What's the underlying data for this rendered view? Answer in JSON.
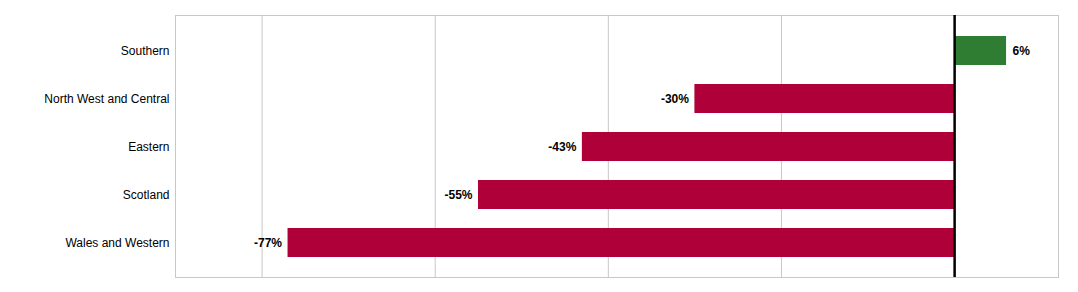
{
  "chart_data": {
    "type": "bar",
    "orientation": "horizontal",
    "categories": [
      "Wales and Western",
      "Scotland",
      "Eastern",
      "North West and Central",
      "Southern"
    ],
    "values": [
      -77,
      -55,
      -43,
      -30,
      6
    ],
    "value_labels": [
      "-77%",
      "-55%",
      "-43%",
      "-30%",
      "6%"
    ],
    "colors": [
      "#B0003A",
      "#B0003A",
      "#B0003A",
      "#B0003A",
      "#2E7D32"
    ],
    "xlim": [
      -90,
      12
    ],
    "xticks": [
      -80,
      -60,
      -40,
      -20,
      0
    ],
    "grid": true,
    "data_labels": true,
    "tick_labels": "y"
  }
}
